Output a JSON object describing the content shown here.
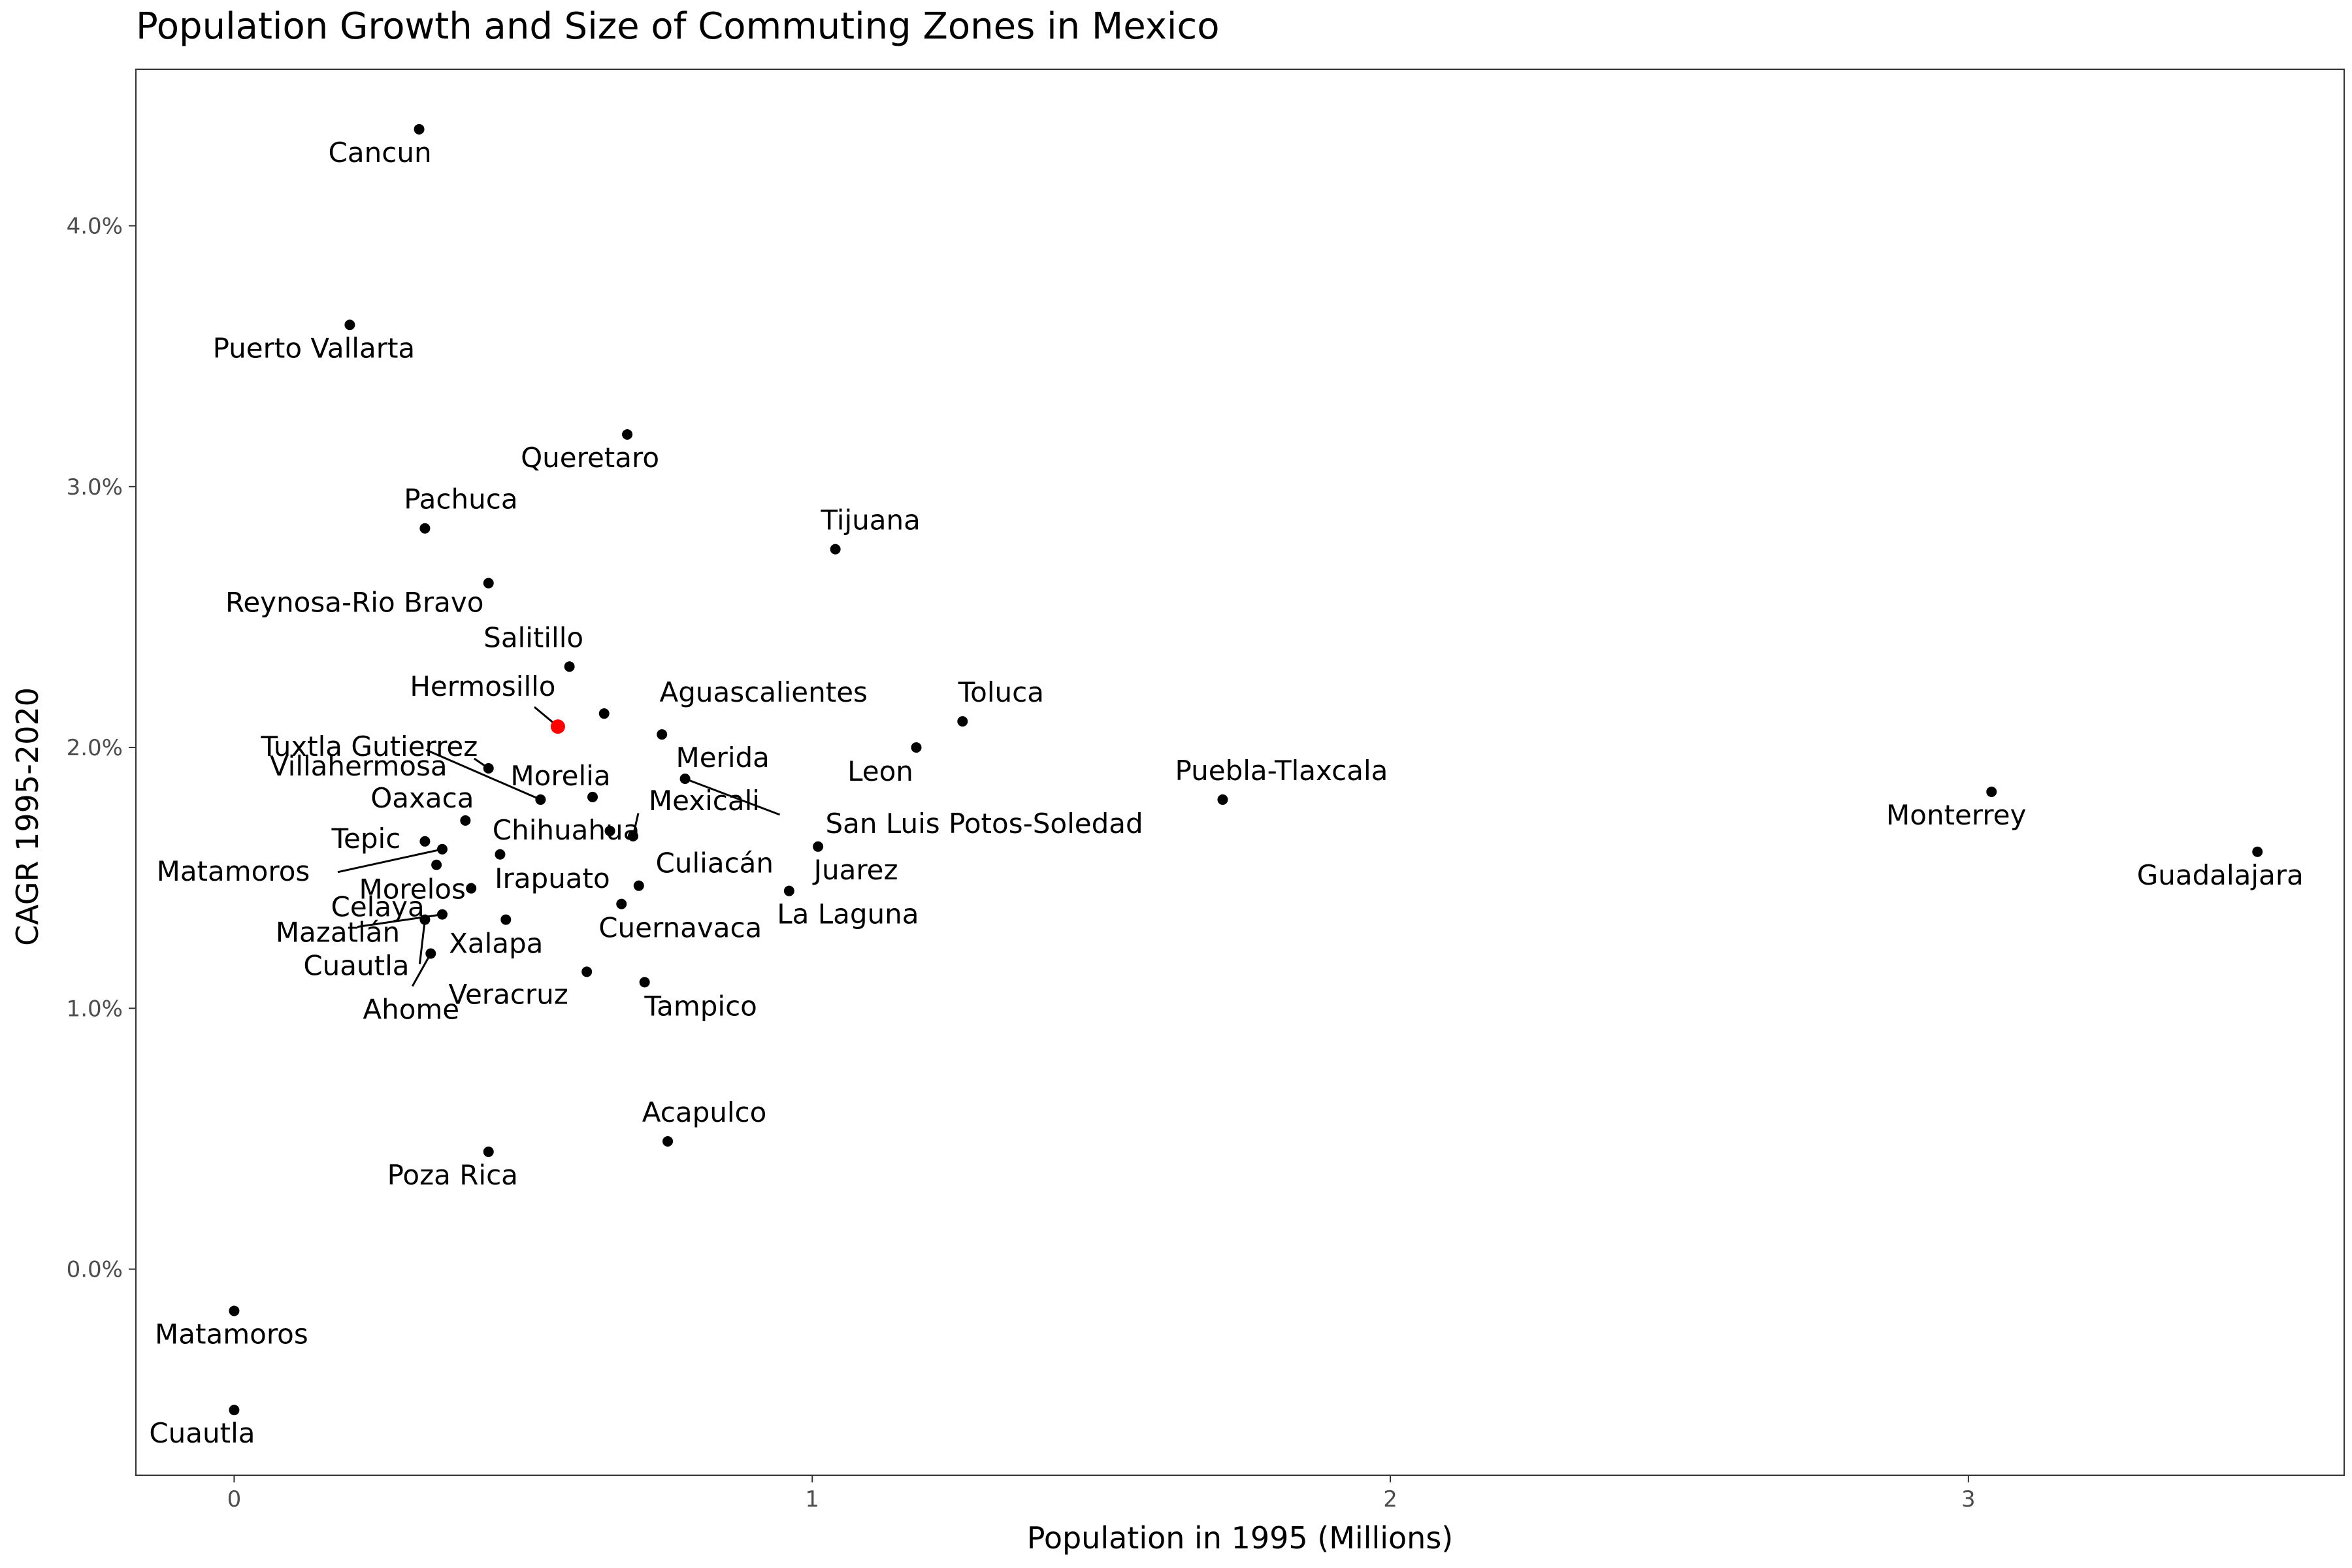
{
  "chart_data": {
    "type": "scatter",
    "title": "Population Growth and Size of Commuting Zones in Mexico",
    "xlabel": "Population in 1995 (Millions)",
    "ylabel": "CAGR 1995-2020",
    "xlim": [
      -0.17,
      3.65
    ],
    "ylim": [
      -0.79,
      4.6
    ],
    "x_ticks": [
      0,
      1,
      2,
      3
    ],
    "x_tick_labels": [
      "0",
      "1",
      "2",
      "3"
    ],
    "y_ticks": [
      0,
      1,
      2,
      3,
      4
    ],
    "y_tick_labels": [
      "0.0%",
      "1.0%",
      "2.0%",
      "3.0%",
      "4.0%"
    ],
    "grid": false,
    "highlight_color": "#ff0000",
    "point_color": "#000000",
    "points": [
      {
        "name": "Cancun",
        "x": 0.32,
        "y": 4.37
      },
      {
        "name": "Puerto Vallarta",
        "x": 0.2,
        "y": 3.62
      },
      {
        "name": "Queretaro",
        "x": 0.68,
        "y": 3.2
      },
      {
        "name": "Pachuca",
        "x": 0.33,
        "y": 2.84
      },
      {
        "name": "Tijuana",
        "x": 1.04,
        "y": 2.76
      },
      {
        "name": "Reynosa-Rio Bravo",
        "x": 0.44,
        "y": 2.63
      },
      {
        "name": "Salitillo",
        "x": 0.58,
        "y": 2.31
      },
      {
        "name": "Hermosillo",
        "x": 0.56,
        "y": 2.08,
        "highlight": true
      },
      {
        "name": "Aguascalientes",
        "x": 0.64,
        "y": 2.13
      },
      {
        "name": "Toluca",
        "x": 1.26,
        "y": 2.1
      },
      {
        "name": "Merida",
        "x": 0.74,
        "y": 2.05
      },
      {
        "name": "Leon",
        "x": 1.18,
        "y": 2.0
      },
      {
        "name": "Villahermosa",
        "x": 0.44,
        "y": 1.92
      },
      {
        "name": "Tuxtla Gutierrez",
        "x": 0.53,
        "y": 1.8
      },
      {
        "name": "Morelia",
        "x": 0.62,
        "y": 1.81
      },
      {
        "name": "San Luis Potos-Soledad",
        "x": 0.78,
        "y": 1.88
      },
      {
        "name": "Puebla-Tlaxcala",
        "x": 1.71,
        "y": 1.8
      },
      {
        "name": "Monterrey",
        "x": 3.04,
        "y": 1.83
      },
      {
        "name": "Oaxaca",
        "x": 0.4,
        "y": 1.72
      },
      {
        "name": "Chihuahua",
        "x": 0.65,
        "y": 1.68
      },
      {
        "name": "Mexicali",
        "x": 0.69,
        "y": 1.66
      },
      {
        "name": "Tepic",
        "x": 0.33,
        "y": 1.64
      },
      {
        "name": "Juarez",
        "x": 1.01,
        "y": 1.62
      },
      {
        "name": "Matamoros",
        "x": 0.36,
        "y": 1.61
      },
      {
        "name": "Guadalajara",
        "x": 3.5,
        "y": 1.6
      },
      {
        "name": "Irapuato",
        "x": 0.46,
        "y": 1.59
      },
      {
        "name": "Celaya",
        "x": 0.35,
        "y": 1.55
      },
      {
        "name": "Culiacán",
        "x": 0.7,
        "y": 1.47
      },
      {
        "name": "Morelos",
        "x": 0.41,
        "y": 1.46
      },
      {
        "name": "La Laguna",
        "x": 0.96,
        "y": 1.45
      },
      {
        "name": "Cuernavaca",
        "x": 0.67,
        "y": 1.4
      },
      {
        "name": "Mazatlán",
        "x": 0.36,
        "y": 1.36
      },
      {
        "name": "Xalapa",
        "x": 0.47,
        "y": 1.34
      },
      {
        "name": "Cuautla",
        "x": 0.33,
        "y": 1.34
      },
      {
        "name": "Ahome",
        "x": 0.34,
        "y": 1.21
      },
      {
        "name": "Veracruz",
        "x": 0.61,
        "y": 1.14
      },
      {
        "name": "Tampico",
        "x": 0.71,
        "y": 1.1
      },
      {
        "name": "Acapulco",
        "x": 0.75,
        "y": 0.49
      },
      {
        "name": "Poza Rica",
        "x": 0.44,
        "y": 0.45
      },
      {
        "name": "Matamoros",
        "x": 0.0,
        "y": -0.16
      },
      {
        "name": "Cuautla",
        "x": 0.0,
        "y": -0.54
      }
    ]
  }
}
